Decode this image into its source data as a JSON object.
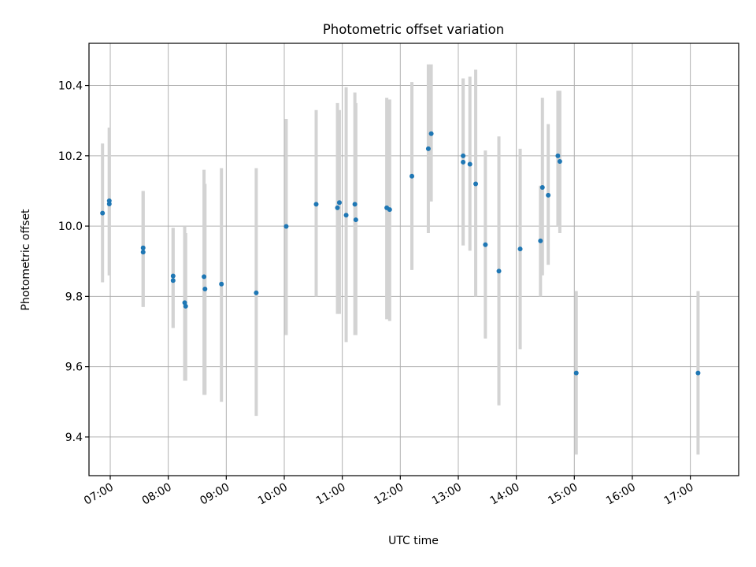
{
  "chart_data": {
    "type": "scatter",
    "title": "Photometric offset variation",
    "xlabel": "UTC time",
    "ylabel": "Photometric offset",
    "x_is_time": true,
    "xlim": [
      "06:38",
      "17:50"
    ],
    "ylim": [
      9.29,
      10.52
    ],
    "xticks": [
      "07:00",
      "08:00",
      "09:00",
      "10:00",
      "11:00",
      "12:00",
      "13:00",
      "14:00",
      "15:00",
      "16:00",
      "17:00"
    ],
    "yticks": [
      9.4,
      9.6,
      9.8,
      10.0,
      10.2,
      10.4
    ],
    "ytick_labels": [
      "9.4",
      "9.6",
      "9.8",
      "10.0",
      "10.2",
      "10.4"
    ],
    "grid": true,
    "marker_color": "#1f77b4",
    "errorbar_color": "#d3d3d3",
    "points": [
      {
        "t": "06:52",
        "y": 10.037,
        "lo": 9.84,
        "hi": 10.235
      },
      {
        "t": "06:59",
        "y": 10.072,
        "lo": 9.86,
        "hi": 10.28
      },
      {
        "t": "06:59",
        "y": 10.063,
        "lo": 9.86,
        "hi": 10.28
      },
      {
        "t": "07:34",
        "y": 9.938,
        "lo": 9.77,
        "hi": 10.1
      },
      {
        "t": "07:34",
        "y": 9.926,
        "lo": 9.77,
        "hi": 10.1
      },
      {
        "t": "08:05",
        "y": 9.858,
        "lo": 9.71,
        "hi": 9.995
      },
      {
        "t": "08:05",
        "y": 9.845,
        "lo": 9.71,
        "hi": 9.995
      },
      {
        "t": "08:17",
        "y": 9.782,
        "lo": 9.56,
        "hi": 10.0
      },
      {
        "t": "08:18",
        "y": 9.772,
        "lo": 9.56,
        "hi": 9.98
      },
      {
        "t": "08:37",
        "y": 9.856,
        "lo": 9.52,
        "hi": 10.16
      },
      {
        "t": "08:38",
        "y": 9.821,
        "lo": 9.52,
        "hi": 10.12
      },
      {
        "t": "08:55",
        "y": 9.835,
        "lo": 9.5,
        "hi": 10.165
      },
      {
        "t": "09:31",
        "y": 9.81,
        "lo": 9.46,
        "hi": 10.165
      },
      {
        "t": "10:02",
        "y": 9.999,
        "lo": 9.69,
        "hi": 10.305
      },
      {
        "t": "10:33",
        "y": 10.062,
        "lo": 9.8,
        "hi": 10.33
      },
      {
        "t": "10:55",
        "y": 10.052,
        "lo": 9.75,
        "hi": 10.35
      },
      {
        "t": "10:57",
        "y": 10.067,
        "lo": 9.75,
        "hi": 10.33
      },
      {
        "t": "11:04",
        "y": 10.031,
        "lo": 9.67,
        "hi": 10.395
      },
      {
        "t": "11:13",
        "y": 10.062,
        "lo": 9.69,
        "hi": 10.38
      },
      {
        "t": "11:14",
        "y": 10.018,
        "lo": 9.69,
        "hi": 10.35
      },
      {
        "t": "11:46",
        "y": 10.052,
        "lo": 9.735,
        "hi": 10.365
      },
      {
        "t": "11:49",
        "y": 10.047,
        "lo": 9.73,
        "hi": 10.36
      },
      {
        "t": "12:12",
        "y": 10.142,
        "lo": 9.875,
        "hi": 10.41
      },
      {
        "t": "12:29",
        "y": 10.22,
        "lo": 9.98,
        "hi": 10.46
      },
      {
        "t": "12:32",
        "y": 10.263,
        "lo": 10.07,
        "hi": 10.46
      },
      {
        "t": "13:05",
        "y": 10.2,
        "lo": 9.945,
        "hi": 10.42
      },
      {
        "t": "13:05",
        "y": 10.182,
        "lo": 9.945,
        "hi": 10.42
      },
      {
        "t": "13:12",
        "y": 10.176,
        "lo": 9.93,
        "hi": 10.425
      },
      {
        "t": "13:18",
        "y": 10.12,
        "lo": 9.8,
        "hi": 10.445
      },
      {
        "t": "13:28",
        "y": 9.947,
        "lo": 9.68,
        "hi": 10.215
      },
      {
        "t": "13:42",
        "y": 9.872,
        "lo": 9.49,
        "hi": 10.255
      },
      {
        "t": "14:04",
        "y": 9.935,
        "lo": 9.65,
        "hi": 10.22
      },
      {
        "t": "14:25",
        "y": 9.958,
        "lo": 9.8,
        "hi": 10.115
      },
      {
        "t": "14:27",
        "y": 10.11,
        "lo": 9.86,
        "hi": 10.365
      },
      {
        "t": "14:33",
        "y": 10.088,
        "lo": 9.89,
        "hi": 10.29
      },
      {
        "t": "14:43",
        "y": 10.2,
        "lo": 10.0,
        "hi": 10.385
      },
      {
        "t": "14:45",
        "y": 10.184,
        "lo": 9.98,
        "hi": 10.385
      },
      {
        "t": "15:02",
        "y": 9.582,
        "lo": 9.35,
        "hi": 9.815
      },
      {
        "t": "17:08",
        "y": 9.582,
        "lo": 9.35,
        "hi": 9.815
      }
    ]
  }
}
